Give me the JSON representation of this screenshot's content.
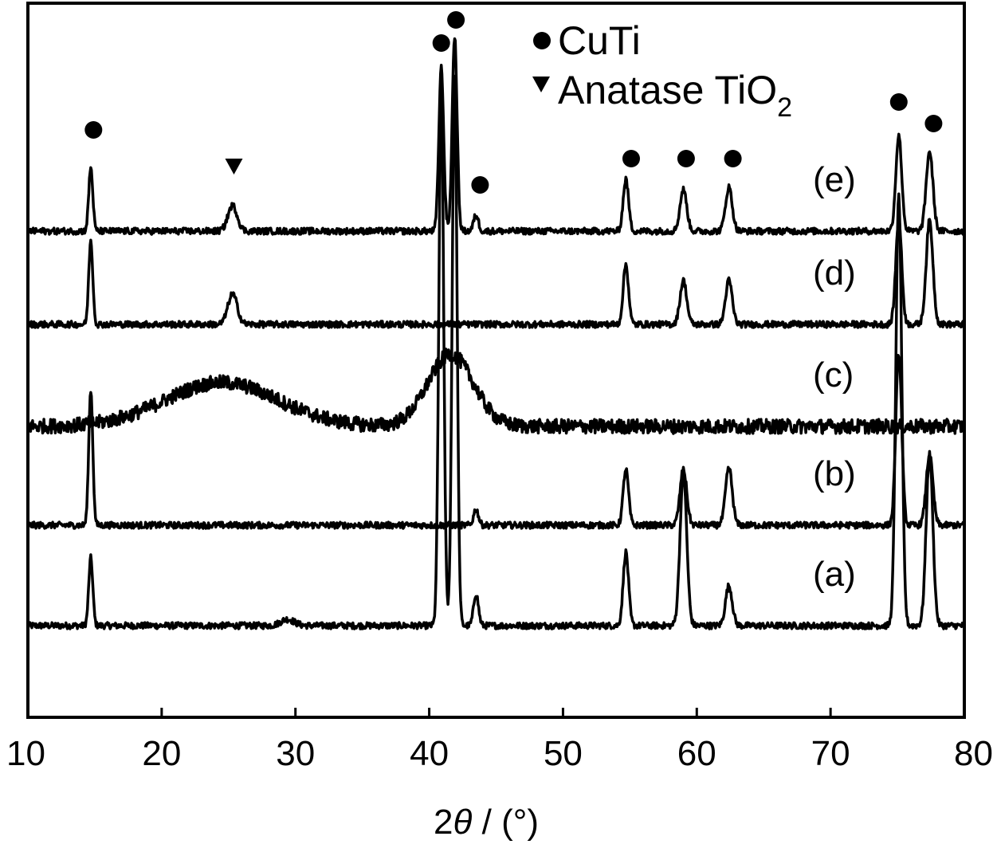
{
  "chart_data": {
    "type": "line",
    "title": "",
    "xlabel": {
      "prefix": "2",
      "symbol": "θ",
      "suffix": " / (°)"
    },
    "ylabel": "",
    "xlim": [
      10,
      80
    ],
    "xticks": [
      10,
      20,
      30,
      40,
      50,
      60,
      70,
      80
    ],
    "yaxis_visible": false,
    "grid": false,
    "legend": {
      "placement": "top-center",
      "entries": [
        {
          "marker": "circle",
          "label": "CuTi"
        },
        {
          "marker": "triangle-down",
          "label": "Anatase TiO",
          "subscript": "2"
        }
      ]
    },
    "series": [
      {
        "name": "(a)",
        "baseline": 0,
        "peaks": [
          [
            14.7,
            85,
            0.15
          ],
          [
            29.4,
            8,
            0.5
          ],
          [
            40.9,
            670,
            0.18
          ],
          [
            41.9,
            690,
            0.18
          ],
          [
            43.5,
            40,
            0.18
          ],
          [
            54.7,
            92,
            0.2
          ],
          [
            59.0,
            190,
            0.25
          ],
          [
            62.4,
            50,
            0.25
          ],
          [
            75.1,
            540,
            0.22
          ],
          [
            77.4,
            215,
            0.25
          ]
        ],
        "humps": [],
        "noise": 4
      },
      {
        "name": "(b)",
        "baseline": 126,
        "peaks": [
          [
            14.7,
            170,
            0.15
          ],
          [
            43.5,
            20,
            0.18
          ],
          [
            54.7,
            70,
            0.2
          ],
          [
            59.0,
            70,
            0.25
          ],
          [
            62.4,
            72,
            0.25
          ],
          [
            75.1,
            215,
            0.22
          ],
          [
            77.4,
            88,
            0.25
          ]
        ],
        "humps": [],
        "noise": 4
      },
      {
        "name": "(c)",
        "baseline": 250,
        "peaks": [],
        "humps": [
          [
            24.5,
            55,
            4.2
          ],
          [
            41.6,
            90,
            1.7
          ]
        ],
        "noise": 9
      },
      {
        "name": "(d)",
        "baseline": 378,
        "peaks": [
          [
            14.7,
            105,
            0.15
          ],
          [
            25.3,
            38,
            0.35
          ],
          [
            54.7,
            75,
            0.2
          ],
          [
            59.0,
            55,
            0.25
          ],
          [
            62.4,
            55,
            0.25
          ],
          [
            75.1,
            132,
            0.22
          ],
          [
            77.4,
            130,
            0.25
          ]
        ],
        "humps": [],
        "noise": 4
      },
      {
        "name": "(e)",
        "baseline": 495,
        "peaks": [
          [
            14.7,
            80,
            0.15
          ],
          [
            25.3,
            32,
            0.35
          ],
          [
            40.9,
            205,
            0.18
          ],
          [
            41.9,
            245,
            0.18
          ],
          [
            43.5,
            20,
            0.18
          ],
          [
            54.7,
            65,
            0.2
          ],
          [
            59.0,
            52,
            0.25
          ],
          [
            62.4,
            55,
            0.25
          ],
          [
            75.1,
            120,
            0.22
          ],
          [
            77.4,
            100,
            0.25
          ]
        ],
        "humps": [],
        "noise": 4
      }
    ],
    "annotations": [
      {
        "marker": "circle",
        "x": 14.9,
        "y": 622
      },
      {
        "marker": "triangle-down",
        "x": 25.4,
        "y": 577
      },
      {
        "marker": "circle",
        "x": 40.9,
        "y": 731
      },
      {
        "marker": "circle",
        "x": 42.0,
        "y": 760
      },
      {
        "marker": "circle",
        "x": 43.8,
        "y": 553
      },
      {
        "marker": "circle",
        "x": 55.1,
        "y": 586
      },
      {
        "marker": "circle",
        "x": 59.2,
        "y": 586
      },
      {
        "marker": "circle",
        "x": 62.7,
        "y": 586
      },
      {
        "marker": "circle",
        "x": 75.1,
        "y": 657
      },
      {
        "marker": "circle",
        "x": 77.7,
        "y": 630
      }
    ]
  },
  "colors": {
    "line": "#000000",
    "background": "#ffffff"
  }
}
